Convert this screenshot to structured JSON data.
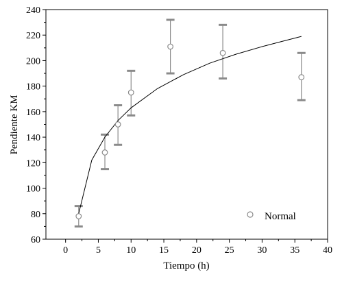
{
  "chart_data": {
    "type": "scatter",
    "title": "",
    "xlabel": "Tiempo (h)",
    "ylabel": "Pendiente KM",
    "xlim": [
      -3,
      40
    ],
    "ylim": [
      60,
      240
    ],
    "x_ticks": [
      0,
      5,
      10,
      15,
      20,
      25,
      30,
      35,
      40
    ],
    "y_ticks": [
      60,
      80,
      100,
      120,
      140,
      160,
      180,
      200,
      220,
      240
    ],
    "grid": false,
    "legend_position": "bottom-right",
    "series": [
      {
        "name": "Normal",
        "marker": "open-circle",
        "color": "#8a8a8a",
        "points": [
          {
            "x": 2,
            "y": 78,
            "err_low": 70,
            "err_high": 86
          },
          {
            "x": 6,
            "y": 128,
            "err_low": 115,
            "err_high": 142
          },
          {
            "x": 8,
            "y": 150,
            "err_low": 134,
            "err_high": 165
          },
          {
            "x": 10,
            "y": 175,
            "err_low": 157,
            "err_high": 192
          },
          {
            "x": 16,
            "y": 211,
            "err_low": 190,
            "err_high": 232
          },
          {
            "x": 24,
            "y": 206,
            "err_low": 186,
            "err_high": 228
          },
          {
            "x": 36,
            "y": 187,
            "err_low": 169,
            "err_high": 206
          }
        ]
      }
    ],
    "fit_curve": {
      "color": "#000000",
      "points": [
        {
          "x": 2,
          "y": 80
        },
        {
          "x": 4,
          "y": 122
        },
        {
          "x": 6,
          "y": 140
        },
        {
          "x": 8,
          "y": 153
        },
        {
          "x": 10,
          "y": 163
        },
        {
          "x": 14,
          "y": 178
        },
        {
          "x": 18,
          "y": 189
        },
        {
          "x": 22,
          "y": 198
        },
        {
          "x": 26,
          "y": 205
        },
        {
          "x": 30,
          "y": 211
        },
        {
          "x": 33,
          "y": 215
        },
        {
          "x": 36,
          "y": 219
        }
      ]
    }
  }
}
